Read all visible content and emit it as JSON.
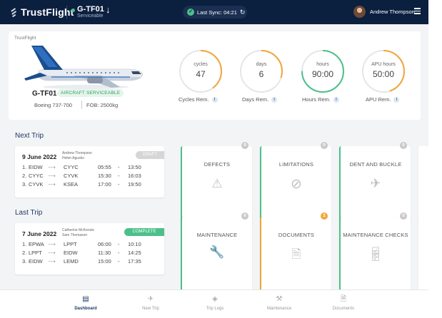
{
  "header": {
    "brand": "TrustFlight",
    "registration": "G-TF01",
    "status": "Serviceable",
    "sync_label": "Last Sync: 04:21",
    "user_name": "Andrew Thompson",
    "colors": {
      "navy": "#0b1f3f",
      "green": "#4cc08a",
      "orange": "#f0a63a"
    }
  },
  "aircraft": {
    "summary_brand": "TrustFlight",
    "registration": "G-TF01",
    "status_badge": "AIRCRAFT SERVICEABLE",
    "type": "Boeing 737-700",
    "fob": "FOB: 2500kg"
  },
  "gauges": [
    {
      "unit": "cycles",
      "value": "47",
      "label": "Cycles Rem.",
      "fill": 0.4,
      "color": "#f0a63a"
    },
    {
      "unit": "days",
      "value": "6",
      "label": "Days Rem.",
      "fill": 0.3,
      "color": "#f0a63a"
    },
    {
      "unit": "hours",
      "value": "90:00",
      "label": "Hours Rem.",
      "fill": 0.75,
      "color": "#4cc08a"
    },
    {
      "unit": "APU hours",
      "value": "50:00",
      "label": "APU Rem.",
      "fill": 0.45,
      "color": "#f0a63a"
    }
  ],
  "next_trip": {
    "title": "Next Trip",
    "date": "9 June 2022",
    "crew": [
      "Andrew Thompson",
      "Helen Agusko"
    ],
    "badge": "DRAFT",
    "legs": [
      {
        "n": "1.",
        "from": "EIDW",
        "to": "CYYC",
        "dep": "05:55",
        "arr": "13:50"
      },
      {
        "n": "2.",
        "from": "CYYC",
        "to": "CYVK",
        "dep": "15:30",
        "arr": "16:03"
      },
      {
        "n": "3.",
        "from": "CYVK",
        "to": "KSEA",
        "dep": "17:00",
        "arr": "19:50"
      }
    ]
  },
  "last_trip": {
    "title": "Last Trip",
    "date": "7 June 2022",
    "crew": [
      "Catherine McKenzie",
      "Sam Thomason"
    ],
    "badge": "COMPLETE",
    "legs": [
      {
        "n": "1.",
        "from": "EPWA",
        "to": "LPPT",
        "dep": "06:00",
        "arr": "10:10"
      },
      {
        "n": "2.",
        "from": "LPPT",
        "to": "EIDW",
        "dep": "11:30",
        "arr": "14:25"
      },
      {
        "n": "3.",
        "from": "EIDW",
        "to": "LEMD",
        "dep": "15:00",
        "arr": "17:35"
      }
    ]
  },
  "tiles": [
    {
      "label": "DEFECTS",
      "count": "0",
      "icon": "warning-icon"
    },
    {
      "label": "LIMITATIONS",
      "count": "0",
      "icon": "prohibited-icon"
    },
    {
      "label": "DENT AND BUCKLE",
      "count": "0",
      "icon": "airplane-icon"
    },
    {
      "label": "MAINTENANCE",
      "count": "0",
      "icon": "wrench-icon"
    },
    {
      "label": "DOCUMENTS",
      "count": "2",
      "icon": "document-icon"
    },
    {
      "label": "MAINTENANCE CHECKS",
      "count": "0",
      "icon": "checklist-icon"
    }
  ],
  "leg_separator": "-",
  "nav": [
    {
      "label": "Dashboard",
      "icon": "dashboard-icon",
      "active": true
    },
    {
      "label": "New Trip",
      "icon": "plane-icon",
      "active": false
    },
    {
      "label": "Trip Logs",
      "icon": "layers-icon",
      "active": false
    },
    {
      "label": "Maintenance",
      "icon": "wrench-icon",
      "active": false
    },
    {
      "label": "Documents",
      "icon": "document-icon",
      "active": false
    }
  ]
}
